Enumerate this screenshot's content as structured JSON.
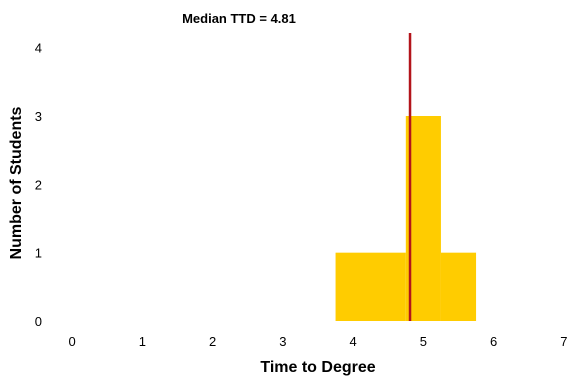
{
  "chart_data": {
    "type": "bar",
    "title": "Median TTD = 4.81",
    "xlabel": "Time to Degree",
    "ylabel": "Number of Students",
    "xlim": [
      -0.5,
      7.5
    ],
    "ylim": [
      0,
      4.2
    ],
    "xticks": [
      "0",
      "1",
      "2",
      "3",
      "4",
      "5",
      "6",
      "7"
    ],
    "yticks": [
      "0",
      "1",
      "2",
      "3",
      "4"
    ],
    "bins": [
      {
        "from": 3.75,
        "to": 4.75,
        "count": 1
      },
      {
        "from": 4.75,
        "to": 5.25,
        "count": 3
      },
      {
        "from": 5.25,
        "to": 5.75,
        "count": 1
      }
    ],
    "median": 4.81,
    "bar_color": "#FFCC00",
    "median_line_color": "#B3141B",
    "grid": false,
    "legend": "none"
  }
}
